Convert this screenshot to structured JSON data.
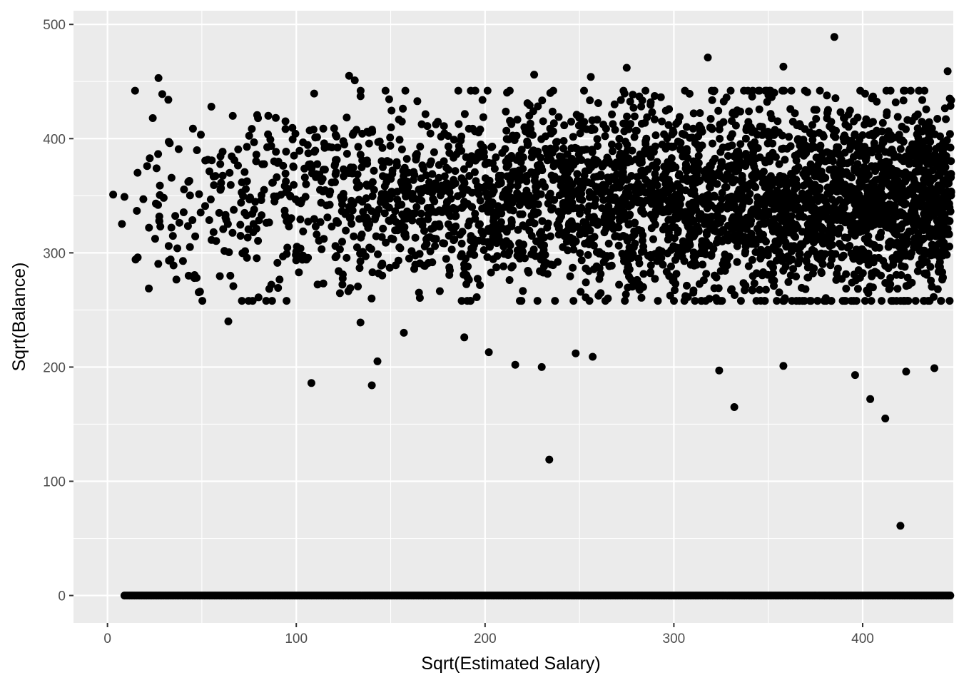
{
  "chart_data": {
    "type": "scatter",
    "title": "",
    "xlabel": "Sqrt(Estimated Salary)",
    "ylabel": "Sqrt(Balance)",
    "xlim": [
      -18,
      448
    ],
    "ylim": [
      -24,
      512
    ],
    "x_ticks": [
      0,
      100,
      200,
      300,
      400
    ],
    "y_ticks": [
      0,
      100,
      200,
      300,
      400,
      500
    ],
    "x_tick_labels": [
      "0",
      "100",
      "200",
      "300",
      "400"
    ],
    "y_tick_labels": [
      "0",
      "100",
      "200",
      "300",
      "400",
      "500"
    ],
    "grid": true,
    "legend": "none",
    "colors": {
      "panel": "#ebebeb",
      "grid": "#ffffff",
      "point": "#000000",
      "tick_text": "#4d4d4d"
    },
    "outliers": [
      {
        "x": 3,
        "y": 351
      },
      {
        "x": 9,
        "y": 349
      },
      {
        "x": 16,
        "y": 296
      },
      {
        "x": 19,
        "y": 347
      },
      {
        "x": 21,
        "y": 376
      },
      {
        "x": 22,
        "y": 322
      },
      {
        "x": 24,
        "y": 418
      },
      {
        "x": 26,
        "y": 374
      },
      {
        "x": 27,
        "y": 453
      },
      {
        "x": 28,
        "y": 323
      },
      {
        "x": 29,
        "y": 439
      },
      {
        "x": 33,
        "y": 396
      },
      {
        "x": 35,
        "y": 289
      },
      {
        "x": 37,
        "y": 304
      },
      {
        "x": 43,
        "y": 280
      },
      {
        "x": 46,
        "y": 278
      },
      {
        "x": 49,
        "y": 266
      },
      {
        "x": 55,
        "y": 428
      },
      {
        "x": 64,
        "y": 240
      },
      {
        "x": 80,
        "y": 261
      },
      {
        "x": 108,
        "y": 186
      },
      {
        "x": 128,
        "y": 455
      },
      {
        "x": 131,
        "y": 451
      },
      {
        "x": 134,
        "y": 239
      },
      {
        "x": 140,
        "y": 184
      },
      {
        "x": 143,
        "y": 205
      },
      {
        "x": 157,
        "y": 230
      },
      {
        "x": 189,
        "y": 226
      },
      {
        "x": 202,
        "y": 213
      },
      {
        "x": 216,
        "y": 202
      },
      {
        "x": 226,
        "y": 456
      },
      {
        "x": 230,
        "y": 200
      },
      {
        "x": 234,
        "y": 119
      },
      {
        "x": 248,
        "y": 212
      },
      {
        "x": 256,
        "y": 454
      },
      {
        "x": 257,
        "y": 209
      },
      {
        "x": 275,
        "y": 462
      },
      {
        "x": 318,
        "y": 471
      },
      {
        "x": 324,
        "y": 197
      },
      {
        "x": 332,
        "y": 165
      },
      {
        "x": 358,
        "y": 463
      },
      {
        "x": 358,
        "y": 201
      },
      {
        "x": 385,
        "y": 489
      },
      {
        "x": 396,
        "y": 193
      },
      {
        "x": 404,
        "y": 172
      },
      {
        "x": 412,
        "y": 155
      },
      {
        "x": 420,
        "y": 61
      },
      {
        "x": 423,
        "y": 196
      },
      {
        "x": 438,
        "y": 199
      },
      {
        "x": 445,
        "y": 459
      }
    ],
    "bulk": {
      "approx_points": 6400,
      "zero_balance_x_range": [
        9,
        447
      ],
      "nonzero_balance_x_range": [
        3,
        447
      ],
      "nonzero_balance_y_center": 345,
      "nonzero_balance_y_spread": 42
    }
  }
}
